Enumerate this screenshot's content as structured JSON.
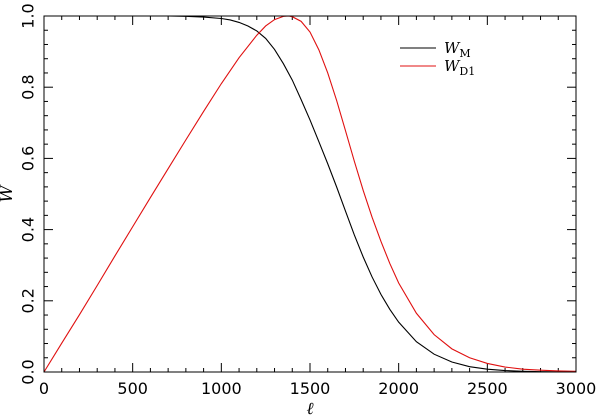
{
  "chart_data": {
    "type": "line",
    "title": "",
    "xlabel": "ℓ",
    "ylabel": "W",
    "xlim": [
      0,
      3000
    ],
    "ylim": [
      0,
      1
    ],
    "xticks": [
      0,
      500,
      1000,
      1500,
      2000,
      2500,
      3000
    ],
    "xtick_labels": [
      "0",
      "500",
      "1000",
      "1500",
      "2000",
      "2500",
      "3000"
    ],
    "yticks": [
      0,
      0.2,
      0.4,
      0.6,
      0.8,
      1.0
    ],
    "ytick_labels": [
      "0.0",
      "0.2",
      "0.4",
      "0.6",
      "0.8",
      "1.0"
    ],
    "legend_position": "top-right",
    "series": [
      {
        "name": "W",
        "name_sub": "M",
        "color": "#000000",
        "x": [
          0,
          100,
          200,
          300,
          400,
          500,
          600,
          700,
          800,
          900,
          1000,
          1050,
          1100,
          1150,
          1200,
          1250,
          1300,
          1350,
          1400,
          1450,
          1500,
          1550,
          1600,
          1650,
          1700,
          1750,
          1800,
          1850,
          1900,
          1950,
          2000,
          2100,
          2200,
          2300,
          2400,
          2500,
          2600,
          2700,
          2800,
          2900,
          3000
        ],
        "values": [
          1.0,
          1.0,
          1.0,
          1.0,
          1.0,
          1.0,
          1.0,
          1.0,
          0.999,
          0.997,
          0.993,
          0.989,
          0.982,
          0.972,
          0.958,
          0.937,
          0.906,
          0.866,
          0.82,
          0.765,
          0.708,
          0.647,
          0.585,
          0.52,
          0.452,
          0.385,
          0.323,
          0.267,
          0.218,
          0.176,
          0.14,
          0.085,
          0.05,
          0.028,
          0.015,
          0.008,
          0.004,
          0.002,
          0.001,
          0.0005,
          0.0002
        ]
      },
      {
        "name": "W",
        "name_sub": "D1",
        "color": "#e01010",
        "x": [
          0,
          100,
          200,
          300,
          400,
          500,
          600,
          700,
          800,
          900,
          1000,
          1100,
          1200,
          1250,
          1300,
          1350,
          1380,
          1400,
          1450,
          1500,
          1550,
          1600,
          1650,
          1700,
          1750,
          1800,
          1850,
          1900,
          1950,
          2000,
          2100,
          2200,
          2300,
          2400,
          2500,
          2600,
          2700,
          2800,
          2900,
          3000
        ],
        "values": [
          0.0,
          0.081,
          0.161,
          0.243,
          0.326,
          0.408,
          0.49,
          0.571,
          0.652,
          0.732,
          0.81,
          0.883,
          0.946,
          0.972,
          0.99,
          0.999,
          1.0,
          0.998,
          0.985,
          0.955,
          0.905,
          0.84,
          0.763,
          0.678,
          0.592,
          0.51,
          0.435,
          0.367,
          0.305,
          0.25,
          0.165,
          0.105,
          0.065,
          0.04,
          0.024,
          0.014,
          0.008,
          0.005,
          0.003,
          0.002
        ]
      }
    ]
  }
}
